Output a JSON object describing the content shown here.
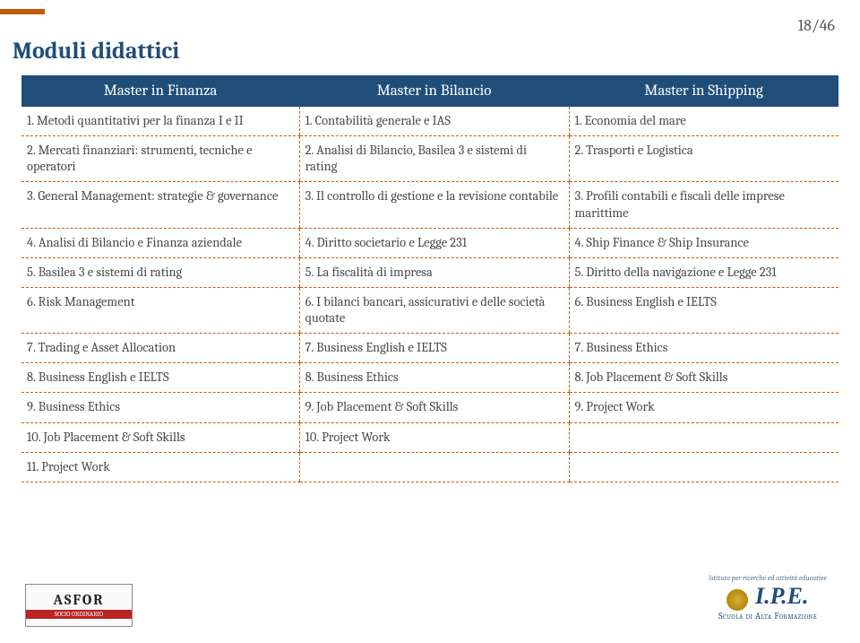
{
  "page_number": "18/46",
  "title": "Moduli didattici",
  "accent_color": "#c55a11",
  "header_bg": "#1f4e79",
  "header_fg": "#ffffff",
  "text_color": "#4a4a4a",
  "border_color": "#c55a11",
  "font_family": "Cambria, Georgia, serif",
  "title_fontsize": 26,
  "header_fontsize": 17,
  "cell_fontsize": 14.5,
  "columns": [
    "Master in Finanza",
    "Master in Bilancio",
    "Master in Shipping"
  ],
  "rows": [
    [
      "1. Metodi quantitativi per la finanza I e II",
      "1. Contabilità generale e IAS",
      "1. Economia del mare"
    ],
    [
      "2. Mercati finanziari: strumenti, tecniche e operatori",
      "2. Analisi di Bilancio, Basilea 3 e sistemi di rating",
      "2. Trasporti e Logistica"
    ],
    [
      "3. General Management: strategie & governance",
      "3. Il controllo di gestione e la revisione contabile",
      "3. Profili contabili e fiscali delle imprese marittime"
    ],
    [
      "4. Analisi di Bilancio e Finanza aziendale",
      "4. Diritto societario e Legge 231",
      "4. Ship Finance & Ship Insurance"
    ],
    [
      "5. Basilea 3 e sistemi di rating",
      "5. La fiscalità di impresa",
      "5. Diritto della navigazione e Legge 231"
    ],
    [
      "6. Risk Management",
      "6. I bilanci bancari, assicurativi e delle società quotate",
      "6. Business English e IELTS"
    ],
    [
      "7. Trading e Asset Allocation",
      "7. Business English e IELTS",
      "7. Business Ethics"
    ],
    [
      "8. Business English e IELTS",
      "8. Business Ethics",
      "8. Job Placement & Soft Skills"
    ],
    [
      "9. Business Ethics",
      "9. Job Placement & Soft Skills",
      "9. Project Work"
    ],
    [
      "10. Job Placement & Soft Skills",
      "10. Project Work",
      ""
    ],
    [
      "11. Project Work",
      "",
      ""
    ]
  ],
  "footer": {
    "asfor_main": "ASFOR",
    "asfor_sub": "SOCIO ORDINARIO",
    "ipe_top": "Istituto per ricerche ed attività educative",
    "ipe_mid": "I.P.E.",
    "ipe_bot": "Scuola di Alta Formazione"
  }
}
